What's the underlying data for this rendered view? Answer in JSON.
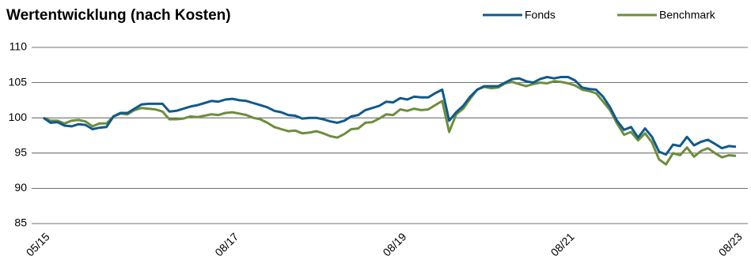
{
  "chart_data": {
    "type": "line",
    "title": "Wertentwicklung (nach Kosten)",
    "categories": [
      "05/15",
      null,
      null,
      null,
      null,
      null,
      null,
      null,
      null,
      null,
      null,
      null,
      null,
      null,
      null,
      null,
      null,
      null,
      null,
      null,
      null,
      null,
      null,
      null,
      null,
      null,
      null,
      "08/17",
      null,
      null,
      null,
      null,
      null,
      null,
      null,
      null,
      null,
      null,
      null,
      null,
      null,
      null,
      null,
      null,
      null,
      null,
      null,
      null,
      null,
      null,
      null,
      "08/19",
      null,
      null,
      null,
      null,
      null,
      null,
      null,
      null,
      null,
      null,
      null,
      null,
      null,
      null,
      null,
      null,
      null,
      null,
      null,
      null,
      null,
      null,
      null,
      "08/21",
      null,
      null,
      null,
      null,
      null,
      null,
      null,
      null,
      null,
      null,
      null,
      null,
      null,
      null,
      null,
      null,
      null,
      null,
      null,
      null,
      null,
      null,
      null,
      "08/23"
    ],
    "series": [
      {
        "name": "Fonds",
        "color": "#0f5a8c",
        "values": [
          100,
          99.3,
          99.4,
          98.9,
          98.8,
          99.1,
          99.0,
          98.4,
          98.6,
          98.7,
          100.2,
          100.7,
          100.7,
          101.3,
          101.9,
          102.0,
          102.0,
          102.0,
          100.9,
          101.0,
          101.3,
          101.6,
          101.8,
          102.1,
          102.4,
          102.3,
          102.6,
          102.7,
          102.5,
          102.4,
          102.1,
          101.8,
          101.5,
          101.0,
          100.8,
          100.4,
          100.3,
          99.9,
          100.0,
          100.0,
          99.8,
          99.5,
          99.3,
          99.6,
          100.2,
          100.4,
          101.1,
          101.4,
          101.7,
          102.3,
          102.2,
          102.8,
          102.6,
          103.0,
          102.9,
          102.9,
          103.5,
          104.0,
          99.6,
          100.8,
          101.7,
          103.0,
          104.0,
          104.5,
          104.5,
          104.5,
          105.0,
          105.5,
          105.6,
          105.2,
          105.0,
          105.5,
          105.8,
          105.6,
          105.8,
          105.8,
          105.3,
          104.3,
          104.1,
          104.0,
          103.0,
          101.5,
          99.6,
          98.3,
          98.7,
          97.2,
          98.5,
          97.3,
          95.2,
          94.8,
          96.2,
          96.0,
          97.3,
          96.1,
          96.6,
          96.9,
          96.3,
          95.7,
          96.0,
          95.9
        ]
      },
      {
        "name": "Benchmark",
        "color": "#6e8d3c",
        "values": [
          100,
          99.6,
          99.6,
          99.2,
          99.6,
          99.7,
          99.5,
          98.8,
          99.2,
          99.2,
          100.2,
          100.6,
          100.5,
          101.1,
          101.4,
          101.3,
          101.2,
          100.9,
          99.8,
          99.8,
          99.9,
          100.2,
          100.1,
          100.3,
          100.5,
          100.4,
          100.7,
          100.8,
          100.6,
          100.4,
          100.0,
          99.8,
          99.3,
          98.7,
          98.4,
          98.1,
          98.2,
          97.8,
          97.9,
          98.1,
          97.8,
          97.4,
          97.2,
          97.7,
          98.4,
          98.5,
          99.3,
          99.4,
          99.9,
          100.5,
          100.4,
          101.2,
          101.0,
          101.3,
          101.1,
          101.2,
          101.8,
          102.4,
          98.0,
          100.5,
          101.3,
          102.7,
          104.0,
          104.4,
          104.2,
          104.3,
          104.9,
          105.1,
          104.8,
          104.5,
          104.8,
          105.0,
          104.9,
          105.2,
          105.1,
          104.9,
          104.6,
          104.0,
          103.8,
          103.5,
          102.3,
          101.1,
          99.2,
          97.6,
          98.0,
          96.8,
          97.8,
          96.5,
          94.1,
          93.4,
          95.0,
          94.7,
          95.8,
          94.5,
          95.3,
          95.7,
          95.0,
          94.4,
          94.7,
          94.6
        ]
      }
    ],
    "ylim": [
      85,
      110
    ],
    "yticks": [
      85,
      90,
      95,
      100,
      105,
      110
    ],
    "grid": true,
    "legend": "top-right"
  }
}
